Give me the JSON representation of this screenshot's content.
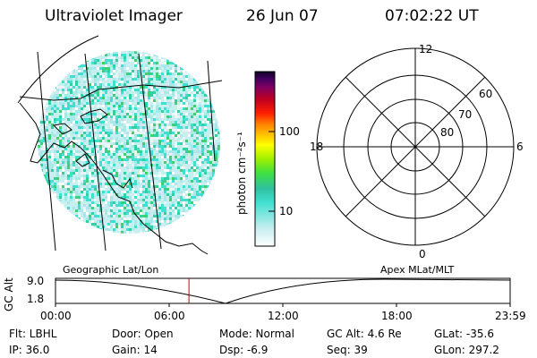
{
  "header": {
    "title": "Ultraviolet Imager",
    "date": "26 Jun 07",
    "time": "07:02:22 UT"
  },
  "left_panel": {
    "caption": "Geographic Lat/Lon"
  },
  "colorbar": {
    "label": "photon cm⁻²s⁻¹",
    "ticks": [
      {
        "value": 100,
        "label": "100"
      },
      {
        "value": 10,
        "label": "10"
      }
    ],
    "scale": "log",
    "range": [
      2,
      500
    ],
    "colors": [
      "#ffffff",
      "#c8eef0",
      "#40e0d0",
      "#30c0a0",
      "#40e040",
      "#a0f000",
      "#ffff00",
      "#ffc000",
      "#ff8000",
      "#ff2000",
      "#c00020",
      "#800060",
      "#400060",
      "#100020"
    ]
  },
  "polar_plot": {
    "caption": "Apex MLat/MLT",
    "mlt_labels": {
      "top": "12",
      "left": "18",
      "right": "6",
      "bottom": "0"
    },
    "lat_rings": [
      {
        "lat": 80,
        "label": "80"
      },
      {
        "lat": 70,
        "label": "70"
      },
      {
        "lat": 60,
        "label": "60"
      }
    ]
  },
  "timeline": {
    "ylabel": "GC Alt",
    "y_ticks": [
      "9.0",
      "1.8"
    ],
    "x_ticks": [
      "00:00",
      "06:00",
      "12:00",
      "18:00",
      "23:59"
    ],
    "current_time_hours": 7.04,
    "marker_color": "#cc0000"
  },
  "info": {
    "filter": "Flt: LBHL",
    "ip": "IP: 36.0",
    "door": "Door: Open",
    "gain": "Gain: 14",
    "mode": "Mode: Normal",
    "dsp": "Dsp:    -6.9",
    "gc_alt": "GC Alt: 4.6 Re",
    "seq": "Seq: 39",
    "glat": "GLat: -35.6",
    "glon": "GLon: 297.2"
  }
}
